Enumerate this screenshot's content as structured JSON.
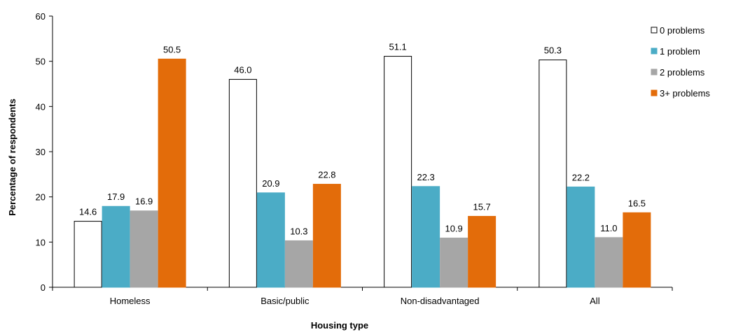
{
  "chart_data": {
    "type": "bar",
    "categories": [
      "Homeless",
      "Basic/public",
      "Non-disadvantaged",
      "All"
    ],
    "series": [
      {
        "name": "0 problems",
        "values": [
          14.6,
          46.0,
          51.1,
          50.3
        ],
        "color": "#ffffff",
        "stroke": "#000000"
      },
      {
        "name": "1 problem",
        "values": [
          17.9,
          20.9,
          22.3,
          22.2
        ],
        "color": "#4bacc6",
        "stroke": "#4bacc6"
      },
      {
        "name": "2 problems",
        "values": [
          16.9,
          10.3,
          10.9,
          11.0
        ],
        "color": "#a6a6a6",
        "stroke": "#a6a6a6"
      },
      {
        "name": "3+ problems",
        "values": [
          50.5,
          22.8,
          15.7,
          16.5
        ],
        "color": "#e36c0a",
        "stroke": "#e36c0a"
      }
    ],
    "title": "",
    "xlabel": "Housing type",
    "ylabel": "Percentage of respondents",
    "ylim": [
      0,
      60
    ],
    "yticks": [
      0,
      10,
      20,
      30,
      40,
      50,
      60
    ],
    "grid": false,
    "legend": "right"
  }
}
